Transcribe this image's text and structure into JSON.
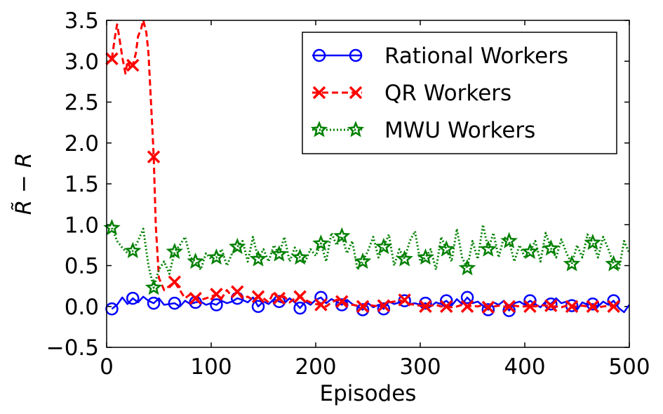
{
  "chart_data": {
    "type": "line",
    "xlabel": "Episodes",
    "ylabel": "R̃ − R",
    "xlim": [
      0,
      500
    ],
    "ylim": [
      -0.5,
      3.5
    ],
    "xticks": [
      "0",
      "100",
      "200",
      "300",
      "400",
      "500"
    ],
    "yticks": [
      "−0.5",
      "0.0",
      "0.5",
      "1.0",
      "1.5",
      "2.0",
      "2.5",
      "3.0",
      "3.5"
    ],
    "grid": false,
    "legend_position": "top-right",
    "series": [
      {
        "name": "Rational Workers",
        "color": "#0000ff",
        "line_style": "solid",
        "marker": "circle",
        "x": [
          5,
          10,
          15,
          20,
          25,
          30,
          35,
          40,
          45,
          50,
          55,
          60,
          65,
          70,
          75,
          80,
          85,
          90,
          95,
          100,
          105,
          110,
          115,
          120,
          125,
          130,
          135,
          140,
          145,
          150,
          155,
          160,
          165,
          170,
          175,
          180,
          185,
          190,
          195,
          200,
          205,
          210,
          215,
          220,
          225,
          230,
          235,
          240,
          245,
          250,
          255,
          260,
          265,
          270,
          275,
          280,
          285,
          290,
          295,
          300,
          305,
          310,
          315,
          320,
          325,
          330,
          335,
          340,
          345,
          350,
          355,
          360,
          365,
          370,
          375,
          380,
          385,
          390,
          395,
          400,
          405,
          410,
          415,
          420,
          425,
          430,
          435,
          440,
          445,
          450,
          455,
          460,
          465,
          470,
          475,
          480,
          485,
          490,
          495,
          500
        ],
        "y": [
          -0.03,
          0.02,
          0.11,
          0.03,
          0.1,
          0.05,
          0.12,
          0.07,
          0.04,
          0.1,
          0.02,
          0.03,
          0.04,
          0.0,
          0.07,
          0.03,
          0.05,
          0.06,
          0.02,
          0.04,
          0.02,
          0.07,
          0.04,
          0.06,
          0.1,
          0.08,
          0.05,
          0.11,
          0.0,
          0.06,
          0.03,
          0.09,
          0.06,
          0.04,
          0.1,
          0.05,
          -0.02,
          0.06,
          0.02,
          0.08,
          0.11,
          0.04,
          0.09,
          0.06,
          0.02,
          0.08,
          0.03,
          0.0,
          -0.04,
          0.04,
          -0.01,
          0.02,
          -0.03,
          0.06,
          0.03,
          0.05,
          0.07,
          0.03,
          0.04,
          0.02,
          0.04,
          0.0,
          0.05,
          0.03,
          0.07,
          0.01,
          0.09,
          0.03,
          0.11,
          0.04,
          0.06,
          0.01,
          -0.04,
          0.05,
          0.02,
          0.07,
          -0.05,
          0.04,
          0.06,
          0.02,
          0.07,
          0.03,
          -0.01,
          0.06,
          0.03,
          0.1,
          0.04,
          0.06,
          0.01,
          -0.04,
          0.05,
          0.02,
          0.03,
          0.0,
          0.06,
          0.02,
          0.07,
          -0.02,
          -0.07,
          0.02
        ],
        "marker_x": [
          5,
          25,
          45,
          65,
          85,
          105,
          125,
          145,
          165,
          185,
          205,
          225,
          245,
          265,
          285,
          305,
          325,
          345,
          365,
          385,
          405,
          425,
          445,
          465,
          485
        ]
      },
      {
        "name": "QR Workers",
        "color": "#ff0000",
        "line_style": "dashed",
        "marker": "x",
        "x": [
          5,
          8,
          10,
          12,
          15,
          18,
          20,
          23,
          25,
          28,
          30,
          33,
          35,
          38,
          40,
          42,
          44,
          45,
          47,
          50,
          55,
          60,
          65,
          70,
          75,
          80,
          85,
          90,
          95,
          100,
          105,
          110,
          115,
          120,
          125,
          130,
          135,
          140,
          145,
          150,
          155,
          160,
          165,
          170,
          175,
          180,
          185,
          190,
          195,
          200,
          205,
          210,
          215,
          220,
          225,
          230,
          235,
          240,
          245,
          250,
          255,
          260,
          265,
          270,
          275,
          280,
          285,
          290,
          295,
          300,
          305,
          310,
          315,
          320,
          325,
          330,
          335,
          340,
          345,
          350,
          355,
          360,
          365,
          370,
          375,
          380,
          385,
          390,
          395,
          400,
          405,
          410,
          415,
          420,
          425,
          430,
          435,
          440,
          445,
          450,
          455,
          460,
          465,
          470,
          475,
          480,
          485,
          490
        ],
        "y": [
          3.03,
          3.3,
          3.45,
          3.3,
          3.05,
          2.85,
          3.0,
          2.9,
          2.95,
          3.1,
          3.3,
          3.4,
          3.5,
          3.35,
          3.1,
          2.6,
          2.1,
          1.83,
          1.0,
          0.35,
          0.2,
          0.25,
          0.3,
          0.2,
          0.1,
          0.15,
          0.1,
          0.08,
          0.1,
          0.12,
          0.15,
          0.1,
          0.2,
          0.12,
          0.18,
          0.1,
          0.12,
          0.08,
          0.12,
          0.1,
          0.05,
          0.18,
          0.1,
          0.12,
          0.05,
          0.1,
          0.12,
          0.08,
          0.05,
          0.03,
          0.02,
          0.0,
          0.05,
          0.08,
          0.06,
          0.03,
          0.02,
          0.01,
          0.0,
          0.02,
          0.01,
          0.0,
          0.02,
          0.05,
          0.06,
          0.08,
          0.05,
          0.03,
          0.02,
          0.01,
          0.0,
          0.01,
          0.02,
          0.0,
          0.01,
          -0.01,
          0.0,
          0.02,
          0.0,
          0.01,
          0.0,
          0.02,
          -0.01,
          0.0,
          0.01,
          0.0,
          -0.01,
          0.01,
          0.0,
          0.0,
          0.01,
          0.0,
          0.02,
          0.01,
          0.0,
          0.0,
          -0.01,
          0.01,
          0.0,
          0.0,
          0.01,
          0.0,
          0.0,
          -0.01,
          0.0,
          0.01,
          0.0,
          0.0
        ],
        "marker_x": [
          5,
          25,
          45,
          65,
          85,
          105,
          125,
          145,
          165,
          185,
          205,
          225,
          245,
          265,
          285,
          305,
          325,
          345,
          365,
          385,
          405,
          425,
          445,
          465,
          485
        ],
        "marker_y": [
          3.03,
          2.95,
          1.83,
          0.3,
          0.1,
          0.15,
          0.18,
          0.12,
          0.1,
          0.12,
          0.02,
          0.06,
          0.0,
          0.01,
          0.08,
          0.0,
          0.0,
          0.0,
          -0.01,
          0.0,
          0.0,
          0.01,
          0.0,
          0.0,
          0.0
        ]
      },
      {
        "name": "MWU Workers",
        "color": "#008000",
        "line_style": "dotted",
        "marker": "star",
        "x": [
          5,
          10,
          15,
          20,
          25,
          30,
          35,
          40,
          45,
          50,
          55,
          60,
          65,
          70,
          75,
          80,
          85,
          90,
          95,
          100,
          105,
          110,
          115,
          120,
          125,
          130,
          135,
          140,
          145,
          150,
          155,
          160,
          165,
          170,
          175,
          180,
          185,
          190,
          195,
          200,
          205,
          210,
          215,
          220,
          225,
          230,
          235,
          240,
          245,
          250,
          255,
          260,
          265,
          270,
          275,
          280,
          285,
          290,
          295,
          300,
          305,
          310,
          315,
          320,
          325,
          330,
          335,
          340,
          345,
          350,
          355,
          360,
          365,
          370,
          375,
          380,
          385,
          390,
          395,
          400,
          405,
          410,
          415,
          420,
          425,
          430,
          435,
          440,
          445,
          450,
          455,
          460,
          465,
          470,
          475,
          480,
          485,
          490,
          495,
          500
        ],
        "y": [
          0.96,
          0.8,
          0.72,
          0.65,
          0.68,
          0.8,
          0.95,
          0.5,
          0.23,
          0.45,
          0.55,
          0.4,
          0.67,
          0.75,
          0.85,
          0.6,
          0.55,
          0.45,
          0.65,
          0.58,
          0.6,
          0.7,
          0.5,
          0.65,
          0.73,
          0.8,
          0.55,
          0.85,
          0.58,
          0.7,
          0.55,
          0.75,
          0.64,
          0.85,
          0.55,
          0.72,
          0.6,
          0.55,
          0.7,
          0.62,
          0.77,
          0.55,
          0.9,
          0.75,
          0.86,
          0.65,
          0.8,
          0.45,
          0.55,
          0.68,
          0.85,
          0.6,
          0.73,
          0.88,
          0.5,
          0.7,
          0.58,
          0.8,
          0.92,
          0.55,
          0.6,
          0.7,
          0.45,
          0.85,
          0.7,
          0.55,
          0.95,
          0.6,
          0.47,
          0.8,
          0.58,
          1.0,
          0.7,
          0.9,
          0.6,
          0.85,
          0.8,
          0.55,
          0.75,
          0.6,
          0.67,
          0.8,
          0.55,
          0.9,
          0.71,
          0.6,
          0.82,
          0.65,
          0.52,
          0.75,
          0.6,
          0.88,
          0.78,
          0.6,
          0.85,
          0.7,
          0.52,
          0.45,
          0.8,
          0.65
        ],
        "marker_x": [
          5,
          25,
          45,
          65,
          85,
          105,
          125,
          145,
          165,
          185,
          205,
          225,
          245,
          265,
          285,
          305,
          325,
          345,
          365,
          385,
          405,
          425,
          445,
          465,
          485
        ]
      }
    ]
  }
}
